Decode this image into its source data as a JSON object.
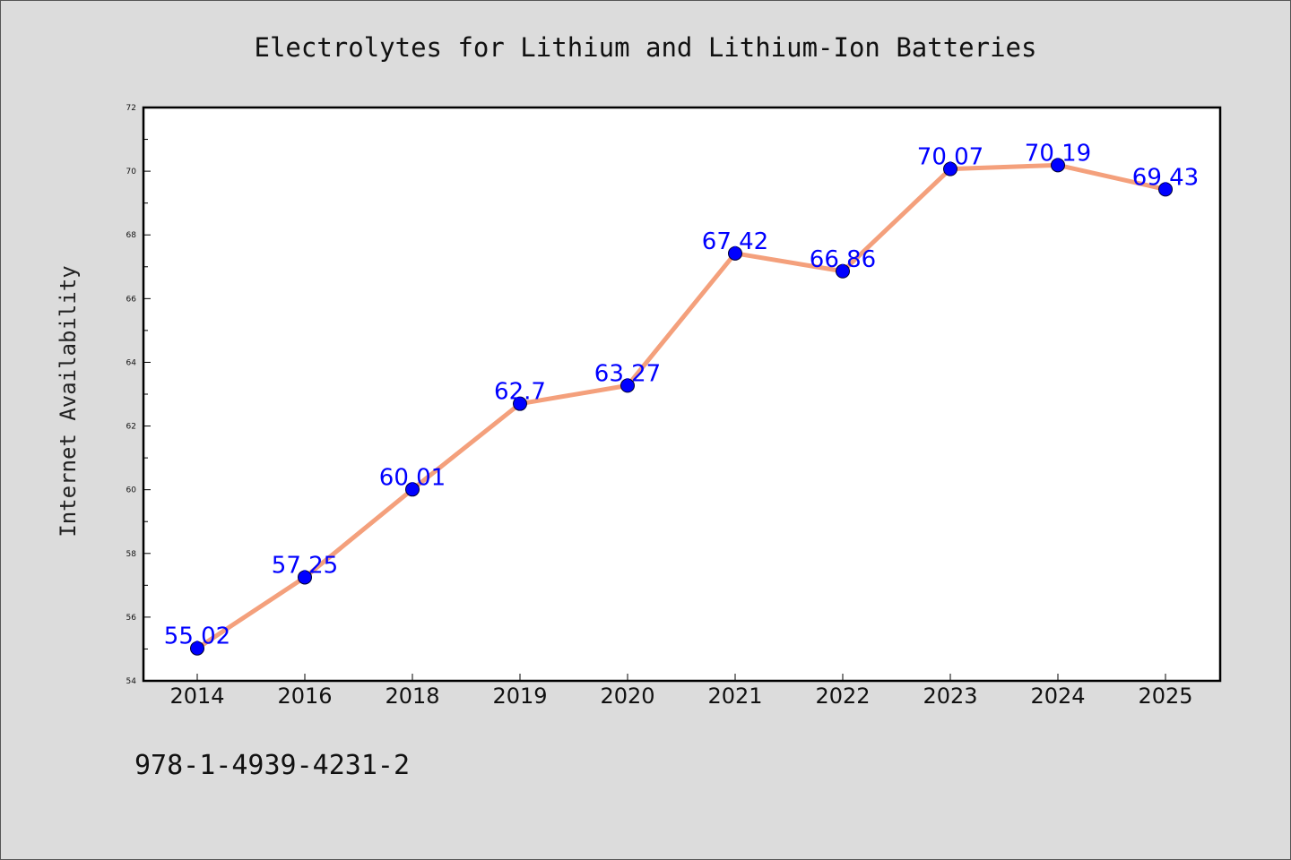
{
  "chart_data": {
    "type": "line",
    "title": "Electrolytes for Lithium and Lithium-Ion Batteries",
    "xlabel": "",
    "ylabel": "Internet Availability",
    "categories": [
      "2014",
      "2016",
      "2018",
      "2019",
      "2020",
      "2021",
      "2022",
      "2023",
      "2024",
      "2025"
    ],
    "values": [
      55.02,
      57.25,
      60.01,
      62.7,
      63.27,
      67.42,
      66.86,
      70.07,
      70.19,
      69.43
    ],
    "data_labels": [
      "55.02",
      "57.25",
      "60.01",
      "62.7",
      "63.27",
      "67.42",
      "66.86",
      "70.07",
      "70.19",
      "69.43"
    ],
    "ylim": [
      54,
      72
    ],
    "yticks": [
      "54",
      "56",
      "58",
      "60",
      "62",
      "64",
      "66",
      "68",
      "70",
      "72"
    ],
    "grid": false,
    "legend": "none",
    "colors": {
      "line": "#f4a07c",
      "marker": "#0000ff",
      "marker_edge": "#000033",
      "label": "#0000ff"
    }
  },
  "footer": {
    "code": "978-1-4939-4231-2"
  }
}
